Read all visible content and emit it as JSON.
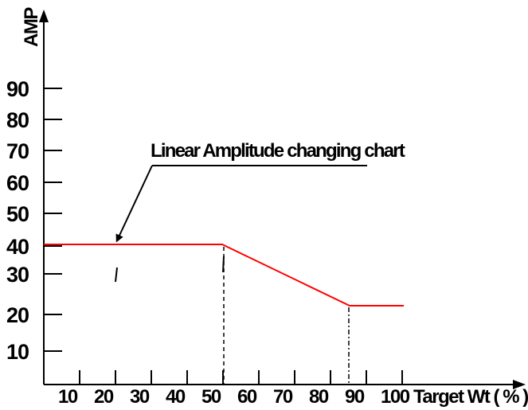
{
  "chart_data": {
    "type": "line",
    "title": "",
    "ylabel": "AMP",
    "xlabel": "Target Wt ( % )",
    "x_ticks": [
      "10",
      "20",
      "30",
      "40",
      "50",
      "60",
      "70",
      "80",
      "90",
      "100"
    ],
    "y_ticks": [
      "10",
      "20",
      "30",
      "40",
      "50",
      "60",
      "70",
      "80",
      "90"
    ],
    "xlim": [
      0,
      100
    ],
    "ylim": [
      0,
      100
    ],
    "grid": false,
    "series": [
      {
        "points": [
          {
            "x": 0,
            "y": 41
          },
          {
            "x": 50,
            "y": 41
          },
          {
            "x": 85,
            "y": 22
          },
          {
            "x": 100,
            "y": 22
          }
        ]
      }
    ],
    "annotations": [
      {
        "text": "Linear Amplitude changing chart",
        "points_to": {
          "x": 20,
          "y": 41
        }
      }
    ],
    "colors": {
      "series": "#ff0000",
      "axis": "#000000"
    }
  }
}
